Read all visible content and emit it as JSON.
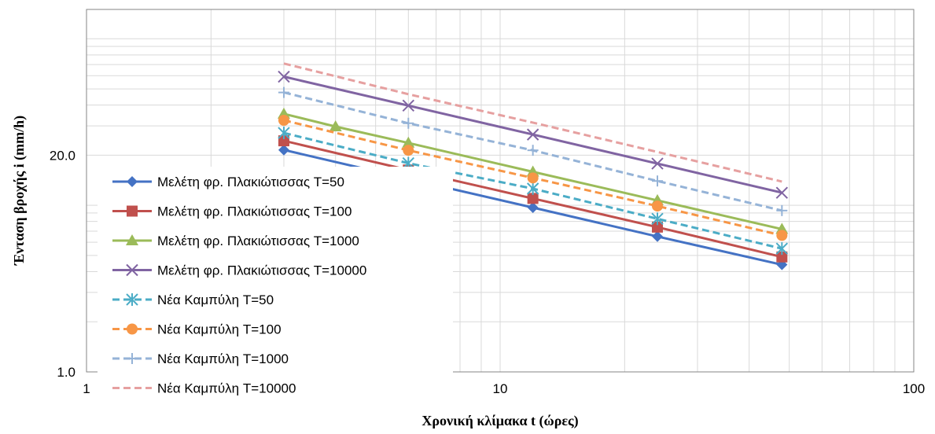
{
  "chart_data": {
    "type": "line",
    "x_scale": "log",
    "y_scale": "log",
    "xlabel": "Χρονική κλίμακα t (ώρες)",
    "ylabel": "Ένταση βροχής i (mm/h)",
    "xlim": [
      1,
      100
    ],
    "ylim": [
      1.0,
      150
    ],
    "x_ticks": [
      1,
      10,
      100
    ],
    "x_tick_labels": [
      "1",
      "10",
      "100"
    ],
    "y_ticks": [
      1.0,
      20.0
    ],
    "y_tick_labels": [
      "1.0",
      "20.0"
    ],
    "grid": true,
    "legend_position": "left",
    "series": [
      {
        "name": "Μελέτη φρ. Πλακιώτισσας  T=50",
        "color": "#4472C4",
        "dash": "solid",
        "marker": "diamond",
        "x": [
          3,
          6,
          12,
          24,
          48
        ],
        "y": [
          21.5,
          14.4,
          9.7,
          6.5,
          4.4
        ]
      },
      {
        "name": "Μελέτη φρ. Πλακιώτισσας  T=100",
        "color": "#C0504D",
        "dash": "solid",
        "marker": "square",
        "x": [
          3,
          6,
          12,
          24,
          48
        ],
        "y": [
          24.4,
          16.3,
          11.0,
          7.4,
          4.9
        ]
      },
      {
        "name": "Μελέτη φρ. Πλακιώτισσας  T=1000",
        "color": "#9BBB59",
        "dash": "solid",
        "marker": "triangle",
        "x": [
          3,
          4,
          6,
          12,
          24,
          48
        ],
        "y": [
          35.4,
          29.7,
          23.7,
          15.9,
          10.7,
          7.2
        ]
      },
      {
        "name": "Μελέτη φρ. Πλακιώτισσας  T=10000",
        "color": "#8064A2",
        "dash": "solid",
        "marker": "x",
        "x": [
          3,
          6,
          12,
          24,
          48
        ],
        "y": [
          59.2,
          39.7,
          26.6,
          17.8,
          11.9
        ]
      },
      {
        "name": "Νέα Καμπύλη T=50",
        "color": "#4BACC6",
        "dash": "dash",
        "marker": "star",
        "x": [
          3,
          6,
          12,
          24,
          48
        ],
        "y": [
          27.2,
          17.9,
          12.6,
          8.3,
          5.5
        ]
      },
      {
        "name": "Νέα Καμπύλη T=100",
        "color": "#F79646",
        "dash": "dash",
        "marker": "circle",
        "x": [
          3,
          6,
          12,
          24,
          48
        ],
        "y": [
          32.4,
          21.4,
          14.6,
          9.9,
          6.6
        ]
      },
      {
        "name": "Νέα Καμπύλη T=1000",
        "color": "#95B3D7",
        "dash": "dash",
        "marker": "plus",
        "x": [
          3,
          6,
          12,
          24,
          48
        ],
        "y": [
          47.6,
          31.1,
          21.4,
          14.0,
          9.3
        ]
      },
      {
        "name": "Νέα Καμπύλη T=10000",
        "color": "#E6A0A0",
        "dash": "dash",
        "marker": "none",
        "x": [
          3,
          6,
          12,
          24,
          48
        ],
        "y": [
          71.0,
          46.5,
          31.4,
          20.9,
          13.9
        ]
      }
    ]
  }
}
